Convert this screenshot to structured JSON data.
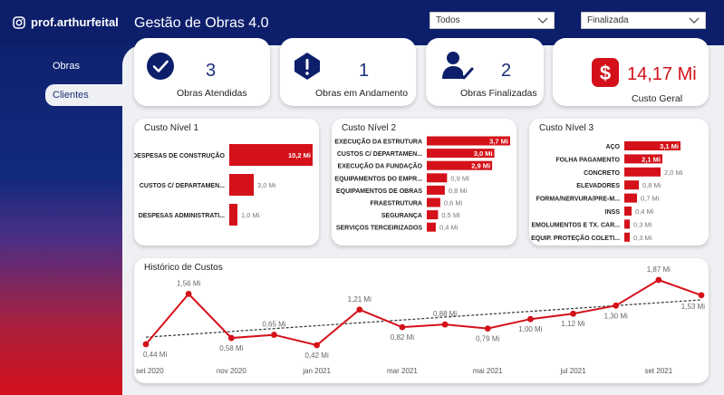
{
  "brand": {
    "handle": "prof.arthurfeital",
    "icon": "instagram-icon"
  },
  "header": {
    "title": "Gestão de Obras 4.0"
  },
  "filters": [
    {
      "selected": "Todos"
    },
    {
      "selected": "Finalizada"
    }
  ],
  "nav": {
    "items": [
      {
        "label": "Obras"
      },
      {
        "label": "Clientes"
      }
    ],
    "active": "Clientes"
  },
  "kpis": {
    "atendidas": {
      "value": "3",
      "label": "Obras Atendidas",
      "icon": "check-circle-icon"
    },
    "andamento": {
      "value": "1",
      "label": "Obras em Andamento",
      "icon": "warning-icon"
    },
    "finalizadas": {
      "value": "2",
      "label": "Obras Finalizadas",
      "icon": "user-check-icon"
    },
    "custo": {
      "value": "14,17 Mi",
      "label": "Custo Geral",
      "icon": "dollar-icon"
    }
  },
  "colors": {
    "navy": "#0d1f6b",
    "red": "#d4111a",
    "accent_text": "#1a2f7a"
  },
  "chart_data": [
    {
      "type": "bar",
      "title": "Custo Nível 1",
      "orientation": "horizontal",
      "categories": [
        "DESPESAS DE CONSTRUÇÃO",
        "CUSTOS C/ DEPARTAMEN...",
        "DESPESAS ADMINISTRATI..."
      ],
      "values": [
        10.2,
        3.0,
        1.0
      ],
      "labels": [
        "10,2 Mi",
        "3,0 Mi",
        "1,0 Mi"
      ],
      "xlim": [
        0,
        10.2
      ]
    },
    {
      "type": "bar",
      "title": "Custo Nível 2",
      "orientation": "horizontal",
      "categories": [
        "EXECUÇÃO DA ESTRUTURA",
        "CUSTOS C/ DEPARTAMEN...",
        "EXECUÇÃO DA FUNDAÇÃO",
        "EQUIPAMENTOS DO EMPR...",
        "EQUIPAMENTOS DE OBRAS",
        "FRAESTRUTURA",
        "SEGURANÇA",
        "SERVIÇOS TERCEIRIZADOS"
      ],
      "values": [
        3.7,
        3.0,
        2.9,
        0.9,
        0.8,
        0.6,
        0.5,
        0.4
      ],
      "labels": [
        "3,7 Mi",
        "3,0 Mi",
        "2,9 Mi",
        "0,9 Mi",
        "0,8 Mi",
        "0,6 Mi",
        "0,5 Mi",
        "0,4 Mi"
      ],
      "xlim": [
        0,
        3.7
      ]
    },
    {
      "type": "bar",
      "title": "Custo Nível 3",
      "orientation": "horizontal",
      "categories": [
        "AÇO",
        "FOLHA PAGAMENTO",
        "CONCRETO",
        "ELEVADORES",
        "FORMA/NERVURA/PRE-M...",
        "INSS",
        "EMOLUMENTOS E TX. CAR...",
        "EQUIP. PROTEÇÃO COLETI..."
      ],
      "values": [
        3.1,
        2.1,
        2.0,
        0.8,
        0.7,
        0.4,
        0.3,
        0.3
      ],
      "labels": [
        "3,1 Mi",
        "2,1 Mi",
        "2,0 Mi",
        "0,8 Mi",
        "0,7 Mi",
        "0,4 Mi",
        "0,3 Mi",
        "0,3 Mi"
      ],
      "xlim": [
        0,
        3.1
      ]
    },
    {
      "type": "line",
      "title": "Histórico de Custos",
      "x": [
        "set 2020",
        "out 2020",
        "nov 2020",
        "dez 2020",
        "jan 2021",
        "fev 2021",
        "mar 2021",
        "abr 2021",
        "mai 2021",
        "jun 2021",
        "jul 2021",
        "ago 2021",
        "set 2021",
        "out 2021"
      ],
      "values": [
        0.44,
        1.56,
        0.58,
        0.65,
        0.42,
        1.21,
        0.82,
        0.88,
        0.79,
        1.0,
        1.12,
        1.3,
        1.87,
        1.53
      ],
      "labels": [
        "0,44 Mi",
        "1,56 Mi",
        "0,58 Mi",
        "0,65 Mi",
        "0,42 Mi",
        "1,21 Mi",
        "0,82 Mi",
        "0,88 Mi",
        "0,79 Mi",
        "1,00 Mi",
        "1,12 Mi",
        "1,30 Mi",
        "1,87 Mi",
        "1,53 Mi"
      ],
      "tick_labels": [
        "set 2020",
        "nov 2020",
        "jan 2021",
        "mar 2021",
        "mai 2021",
        "jul 2021",
        "set 2021"
      ],
      "trendline": true,
      "series_color": "#d4111a"
    }
  ]
}
